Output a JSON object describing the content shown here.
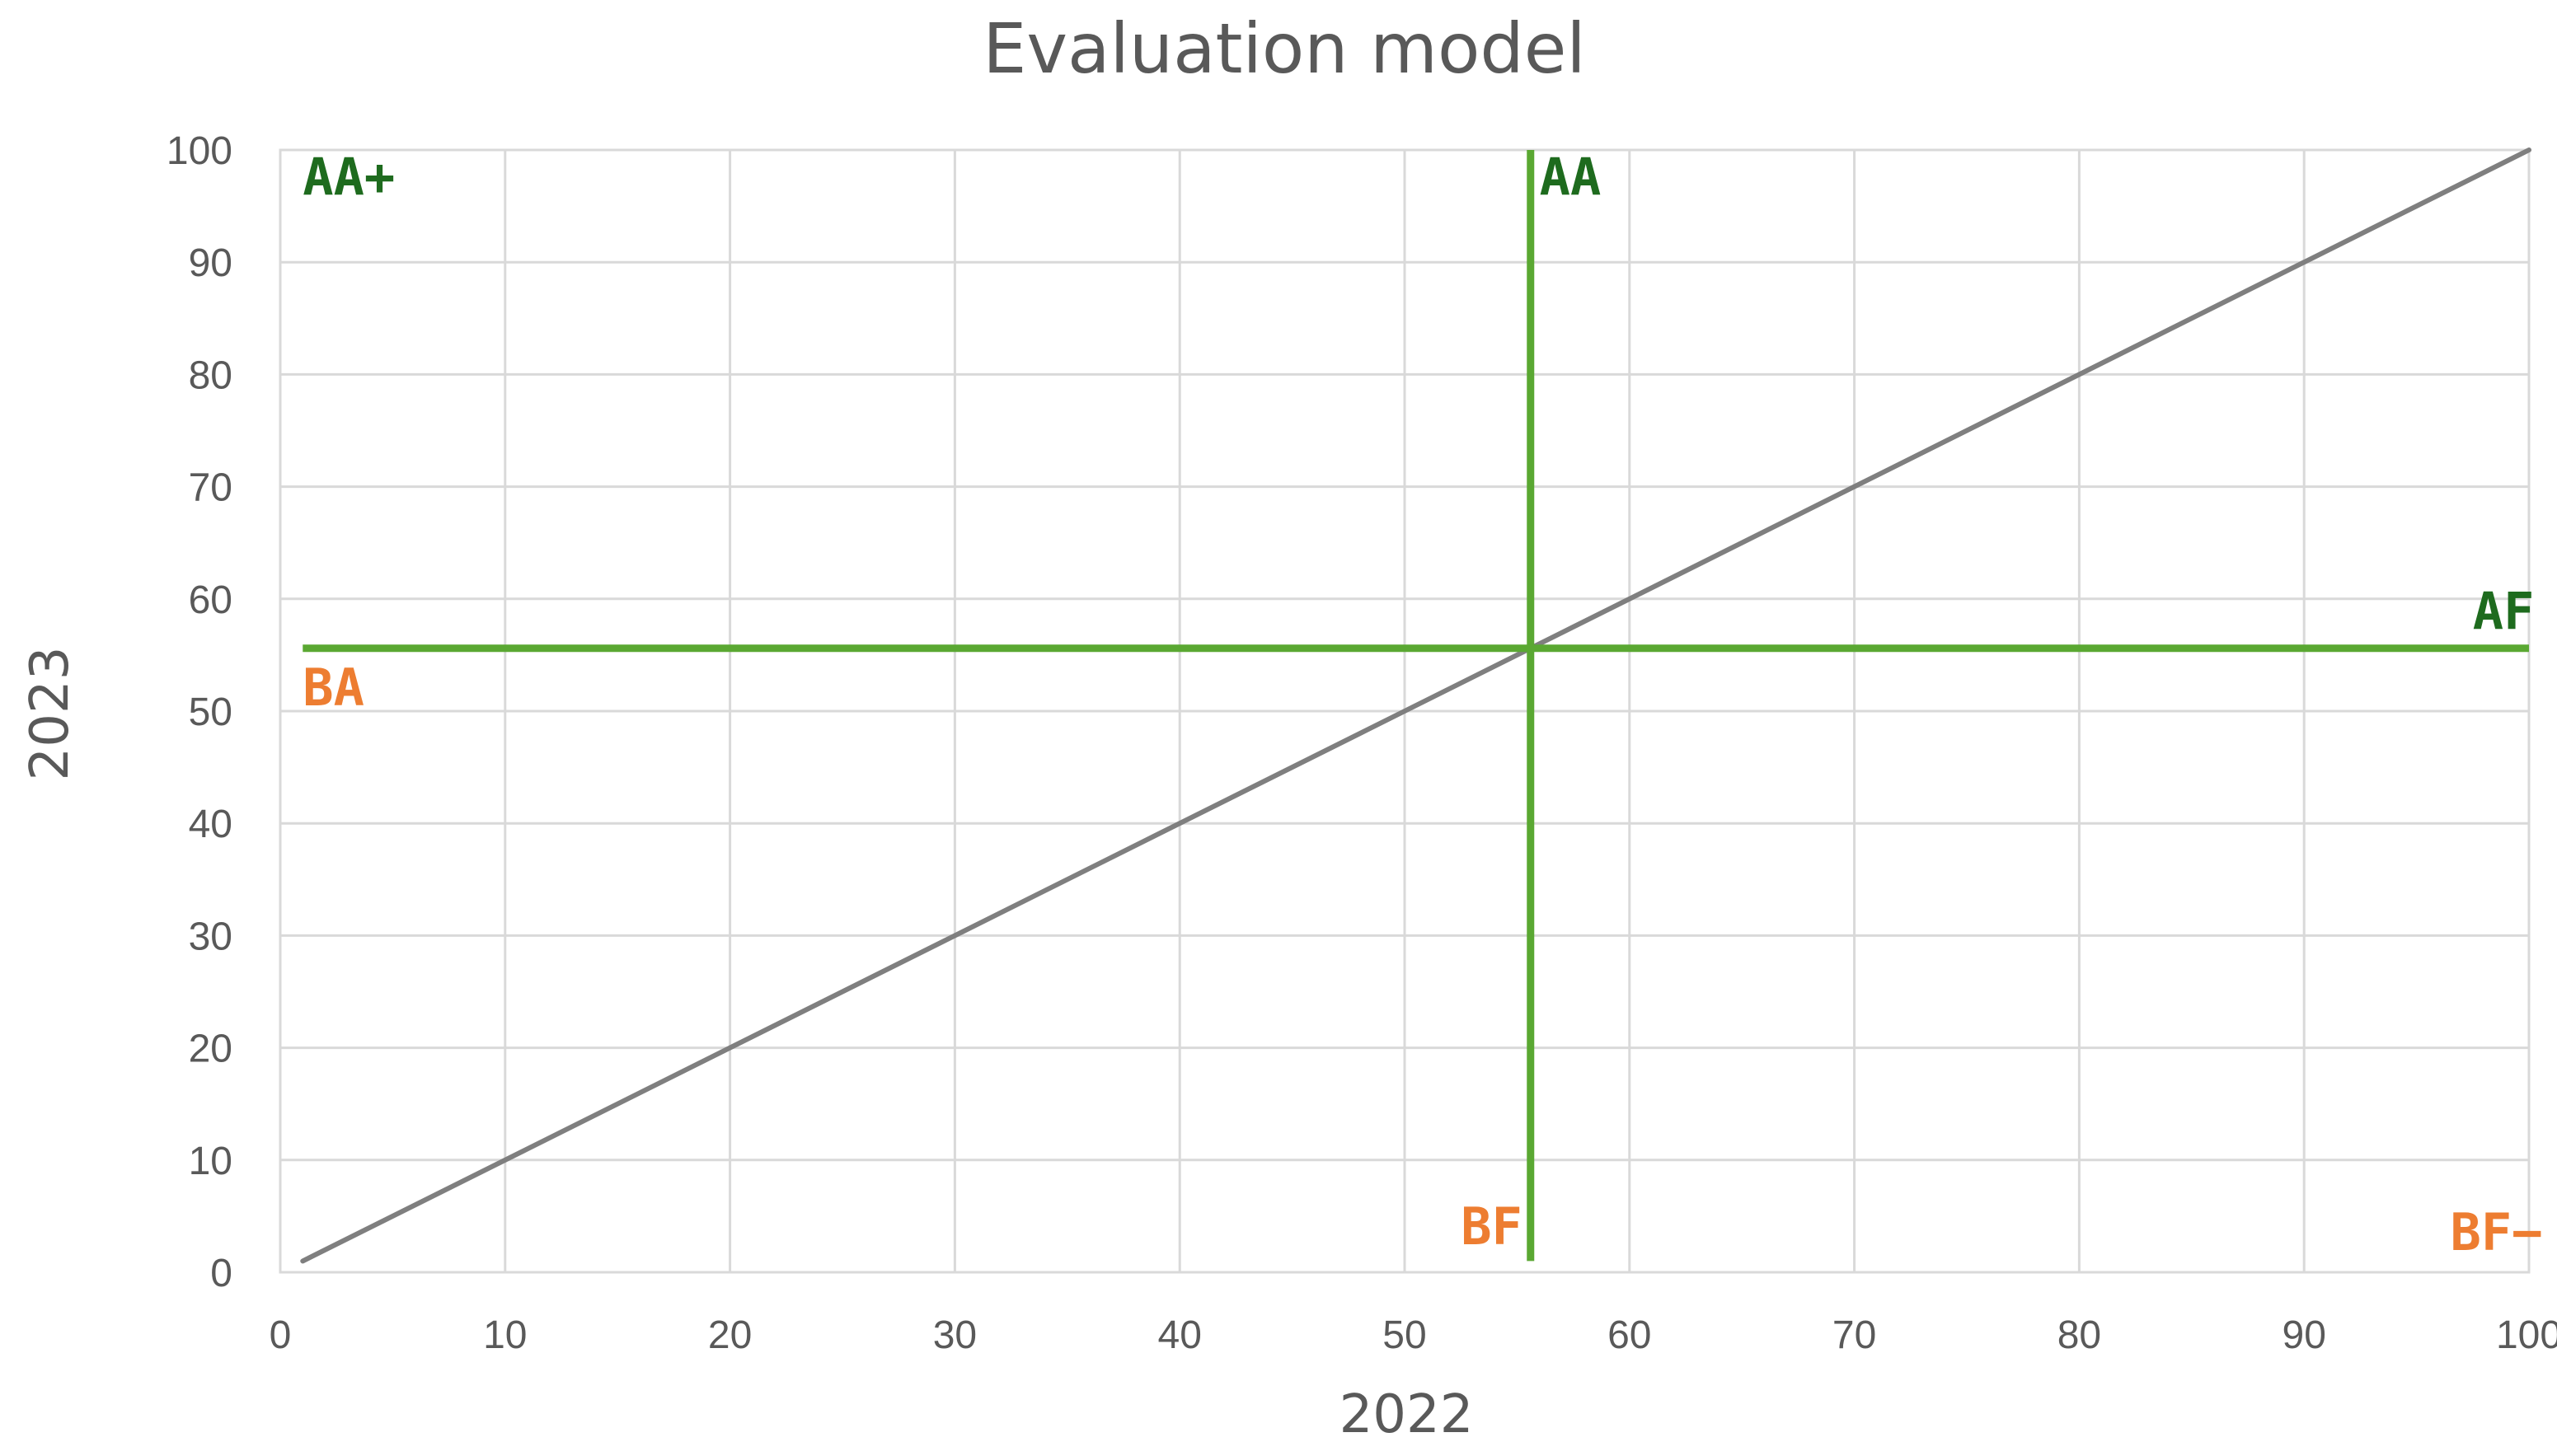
{
  "chart_data": {
    "type": "line",
    "title": "Evaluation model",
    "xlabel": "2022",
    "ylabel": "2023",
    "xlim": [
      0,
      100
    ],
    "ylim": [
      0,
      100
    ],
    "xticks": [
      0,
      10,
      20,
      30,
      40,
      50,
      60,
      70,
      80,
      90,
      100
    ],
    "yticks": [
      0,
      10,
      20,
      30,
      40,
      50,
      60,
      70,
      80,
      90,
      100
    ],
    "grid": true,
    "legend": "none",
    "series": [
      {
        "color": "#7f7f7f",
        "x": [
          1,
          10,
          20,
          30,
          40,
          50,
          60,
          70,
          80,
          90,
          100
        ],
        "y": [
          1,
          10,
          20,
          30,
          40,
          50,
          60,
          70,
          80,
          90,
          100
        ]
      }
    ],
    "thresholds": {
      "vertical": {
        "x": 55.6,
        "y_range": [
          1,
          100
        ],
        "color": "#5aa832"
      },
      "horizontal": {
        "y": 55.6,
        "x_range": [
          1,
          100
        ],
        "color": "#5aa832"
      }
    },
    "annotations": [
      {
        "text": "AA+",
        "x": 1,
        "y": 96,
        "color": "#1e6b1e"
      },
      {
        "text": "AA",
        "x": 56,
        "y": 96,
        "color": "#1e6b1e"
      },
      {
        "text": "AF",
        "x": 97.5,
        "y": 57.3,
        "color": "#1e6b1e"
      },
      {
        "text": "BA",
        "x": 1,
        "y": 50.5,
        "color": "#ed7d31"
      },
      {
        "text": "BF",
        "x": 52.5,
        "y": 2.5,
        "color": "#ed7d31"
      },
      {
        "text": "BF−",
        "x": 96.5,
        "y": 2,
        "color": "#ed7d31"
      }
    ]
  }
}
